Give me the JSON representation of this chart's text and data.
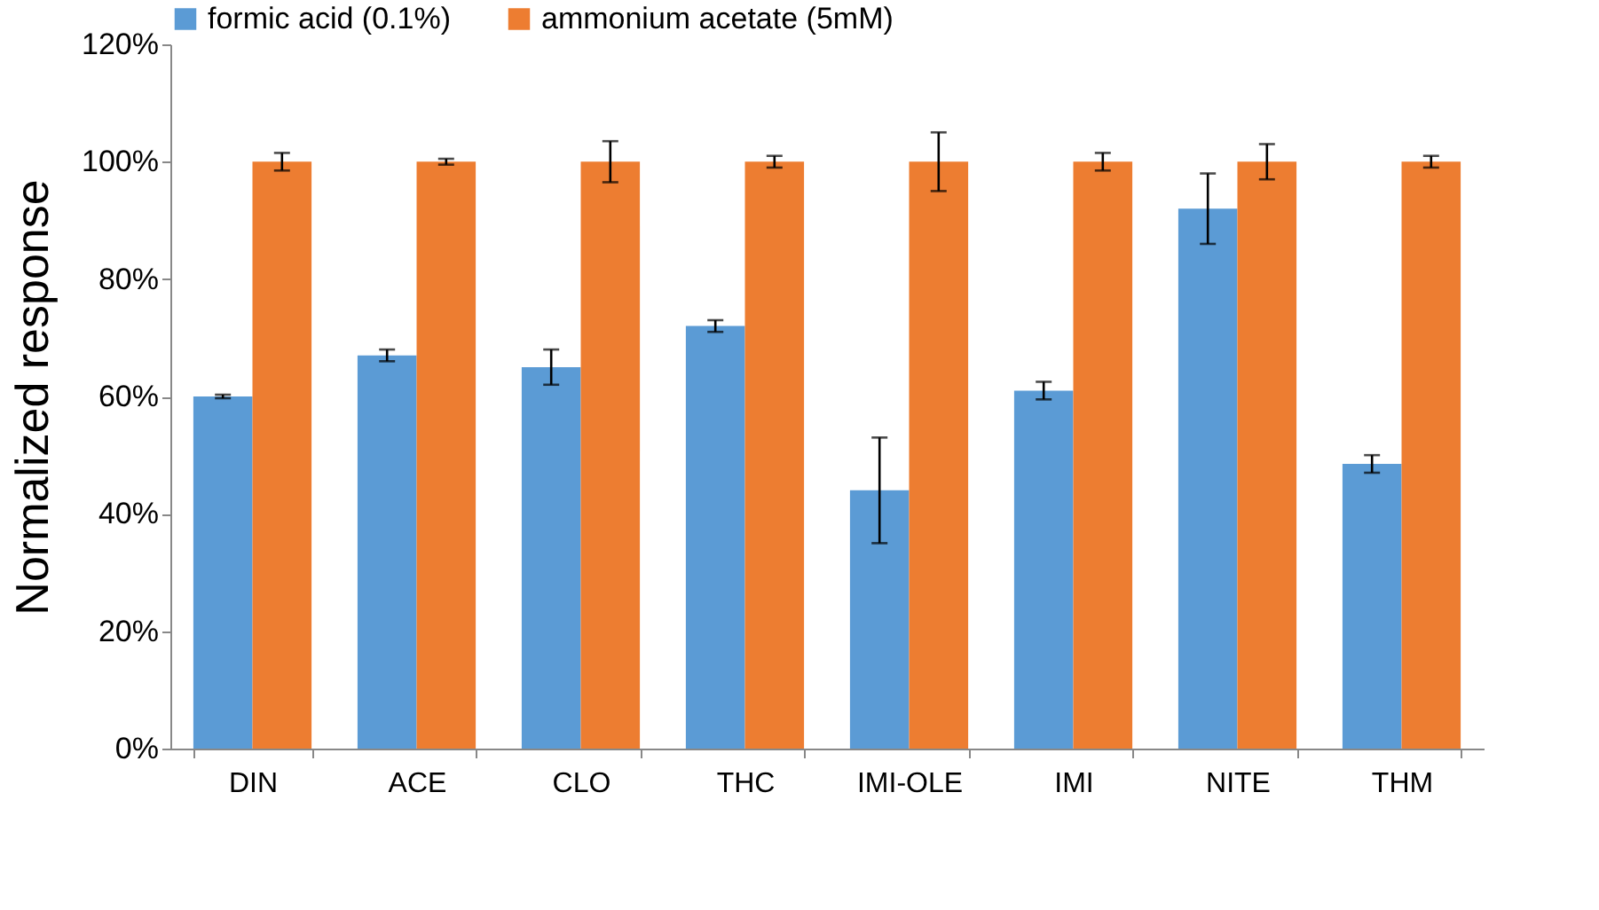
{
  "chart_data": {
    "type": "bar",
    "ylabel": "Normalized response",
    "categories": [
      "DIN",
      "ACE",
      "CLO",
      "THC",
      "IMI-OLE",
      "IMI",
      "NITE",
      "THM"
    ],
    "series": [
      {
        "name": "formic acid (0.1%)",
        "color": "#5b9bd5",
        "values": [
          60,
          67,
          65,
          72,
          44,
          61,
          92,
          48.5
        ],
        "errors": [
          0.3,
          1,
          3,
          1,
          9,
          1.5,
          6,
          1.5
        ]
      },
      {
        "name": "ammonium acetate (5mM)",
        "color": "#ed7d31",
        "values": [
          100,
          100,
          100,
          100,
          100,
          100,
          100,
          100
        ],
        "errors": [
          1.5,
          0.5,
          3.5,
          1,
          5,
          1.5,
          3,
          1
        ]
      }
    ],
    "ylim": [
      0,
      120
    ],
    "yticks": [
      {
        "value": 0,
        "label": "0%"
      },
      {
        "value": 20,
        "label": "20%"
      },
      {
        "value": 40,
        "label": "40%"
      },
      {
        "value": 60,
        "label": "60%"
      },
      {
        "value": 80,
        "label": "80%"
      },
      {
        "value": 100,
        "label": "100%"
      },
      {
        "value": 120,
        "label": "120%"
      }
    ],
    "grid": false,
    "legend": "top"
  }
}
